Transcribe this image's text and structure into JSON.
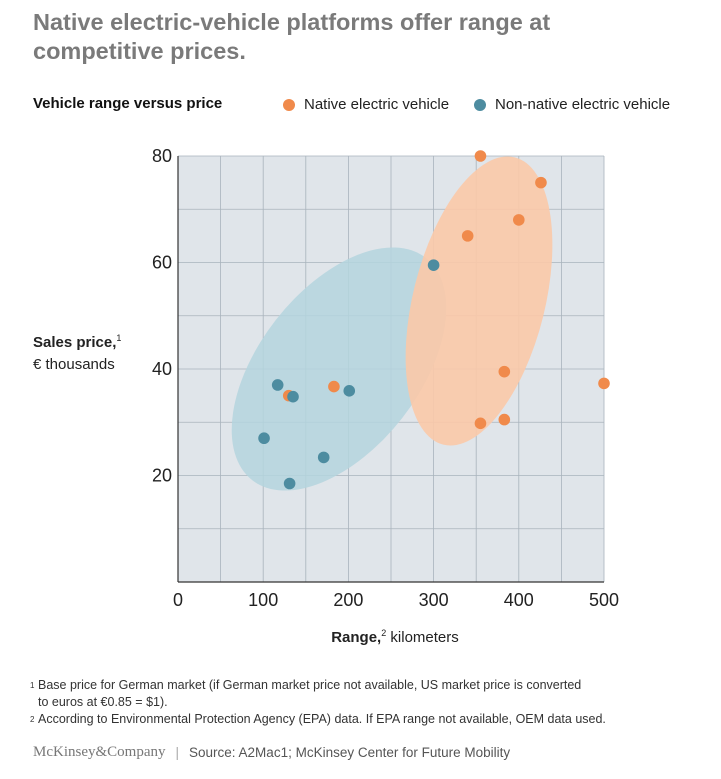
{
  "headline": "Native electric-vehicle platforms offer range at competitive prices.",
  "chart_subtitle": "Vehicle range versus price",
  "legend": [
    {
      "label": "Native electric vehicle",
      "color": "#F08A4B"
    },
    {
      "label": "Non-native electric vehicle",
      "color": "#4D8CA0"
    }
  ],
  "y_axis": {
    "label_bold": "Sales price,",
    "label_sup": "1",
    "label_unit": "€ thousands"
  },
  "x_axis": {
    "label_bold": "Range,",
    "label_sup": "2",
    "label_unit": "kilometers"
  },
  "footnotes": [
    {
      "num": "1",
      "lines": [
        "Base price for German market (if German market price not available, US market price is converted",
        "to euros at €0.85 = $1)."
      ]
    },
    {
      "num": "2",
      "lines": [
        "According to Environmental Protection Agency (EPA) data. If EPA range not available, OEM data used."
      ]
    }
  ],
  "footer": {
    "brand": "McKinsey&Company",
    "source": "Source: A2Mac1; McKinsey Center for Future Mobility"
  },
  "chart_data": {
    "type": "scatter",
    "title": "Vehicle range versus price",
    "xlabel": "Range, kilometers",
    "ylabel": "Sales price, € thousands",
    "xlim": [
      0,
      500
    ],
    "ylim": [
      0,
      80
    ],
    "xticks": [
      0,
      100,
      200,
      300,
      400,
      500
    ],
    "yticks": [
      20,
      40,
      60,
      80
    ],
    "grid": true,
    "legend_position": "top-right",
    "series": [
      {
        "name": "Native electric vehicle",
        "color": "#F08A4B",
        "x": [
          355,
          426,
          400,
          340,
          130,
          183,
          383,
          355,
          383,
          500
        ],
        "y": [
          80,
          75,
          68,
          65,
          35,
          36.7,
          39.5,
          29.8,
          30.5,
          37.3
        ]
      },
      {
        "name": "Non-native electric vehicle",
        "color": "#4D8CA0",
        "x": [
          300,
          117,
          135,
          201,
          101,
          131,
          171
        ],
        "y": [
          59.5,
          37,
          34.8,
          35.9,
          27,
          18.5,
          23.4
        ]
      }
    ],
    "clusters": [
      {
        "name": "Native electric vehicle",
        "color": "#FBC9A8"
      },
      {
        "name": "Non-native electric vehicle",
        "color": "#B4D5DE"
      }
    ]
  }
}
